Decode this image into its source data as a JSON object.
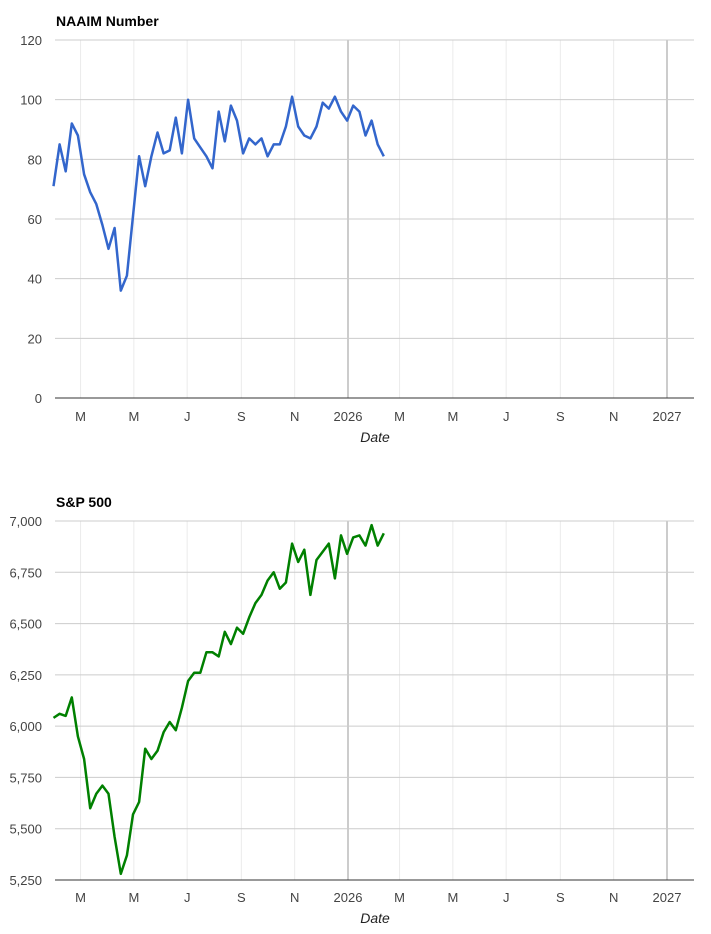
{
  "chart_data": [
    {
      "type": "line",
      "title": "NAAIM Number",
      "xlabel": "Date",
      "ylabel": "",
      "ylim": [
        0,
        120
      ],
      "yticks": [
        0,
        20,
        40,
        60,
        80,
        100,
        120
      ],
      "ytick_labels": [
        "0",
        "20",
        "40",
        "60",
        "80",
        "100",
        "120"
      ],
      "grid": true,
      "color": "#3366cc",
      "xticks": [
        {
          "label": "M",
          "date": "2025-03-01"
        },
        {
          "label": "M",
          "date": "2025-05-01"
        },
        {
          "label": "J",
          "date": "2025-07-01"
        },
        {
          "label": "S",
          "date": "2025-09-01"
        },
        {
          "label": "N",
          "date": "2025-11-01"
        },
        {
          "label": "2026",
          "date": "2026-01-01",
          "major": true
        },
        {
          "label": "M",
          "date": "2026-03-01"
        },
        {
          "label": "M",
          "date": "2026-05-01"
        },
        {
          "label": "J",
          "date": "2026-07-01"
        },
        {
          "label": "S",
          "date": "2026-09-01"
        },
        {
          "label": "N",
          "date": "2026-11-01"
        },
        {
          "label": "2027",
          "date": "2027-01-01",
          "major": true
        }
      ],
      "series": [
        {
          "x": [
            "2025-01-29",
            "2025-02-05",
            "2025-02-12",
            "2025-02-19",
            "2025-02-26",
            "2025-03-05",
            "2025-03-12",
            "2025-03-19",
            "2025-03-26",
            "2025-04-02",
            "2025-04-09",
            "2025-04-16",
            "2025-04-23",
            "2025-04-30",
            "2025-05-07",
            "2025-05-14",
            "2025-05-21",
            "2025-05-28",
            "2025-06-04",
            "2025-06-11",
            "2025-06-18",
            "2025-06-25",
            "2025-07-02",
            "2025-07-09",
            "2025-07-16",
            "2025-07-23",
            "2025-07-30",
            "2025-08-06",
            "2025-08-13",
            "2025-08-20",
            "2025-08-27",
            "2025-09-03",
            "2025-09-10",
            "2025-09-17",
            "2025-09-24",
            "2025-10-01",
            "2025-10-08",
            "2025-10-15",
            "2025-10-22",
            "2025-10-29",
            "2025-11-05",
            "2025-11-12",
            "2025-11-19",
            "2025-11-26",
            "2025-12-03",
            "2025-12-10",
            "2025-12-17",
            "2025-12-24",
            "2025-12-31",
            "2026-01-07",
            "2026-01-14",
            "2026-01-21",
            "2026-01-28",
            "2026-02-04",
            "2026-02-11"
          ],
          "values": [
            71,
            85,
            76,
            92,
            88,
            75,
            69,
            65,
            58,
            50,
            57,
            36,
            41,
            61,
            81,
            71,
            81,
            89,
            82,
            83,
            94,
            82,
            100,
            87,
            84,
            81,
            77,
            96,
            86,
            98,
            93,
            82,
            87,
            85,
            87,
            81,
            85,
            85,
            91,
            101,
            91,
            88,
            87,
            91,
            99,
            97,
            101,
            96,
            93,
            98,
            96,
            88,
            93,
            85,
            81
          ]
        }
      ]
    },
    {
      "type": "line",
      "title": "S&P 500",
      "xlabel": "Date",
      "ylabel": "",
      "ylim": [
        5250,
        7000
      ],
      "yticks": [
        5250,
        5500,
        5750,
        6000,
        6250,
        6500,
        6750,
        7000
      ],
      "ytick_labels": [
        "5,250",
        "5,500",
        "5,750",
        "6,000",
        "6,250",
        "6,500",
        "6,750",
        "7,000"
      ],
      "grid": true,
      "color": "#008000",
      "xticks": [
        {
          "label": "M",
          "date": "2025-03-01"
        },
        {
          "label": "M",
          "date": "2025-05-01"
        },
        {
          "label": "J",
          "date": "2025-07-01"
        },
        {
          "label": "S",
          "date": "2025-09-01"
        },
        {
          "label": "N",
          "date": "2025-11-01"
        },
        {
          "label": "2026",
          "date": "2026-01-01",
          "major": true
        },
        {
          "label": "M",
          "date": "2026-03-01"
        },
        {
          "label": "M",
          "date": "2026-05-01"
        },
        {
          "label": "J",
          "date": "2026-07-01"
        },
        {
          "label": "S",
          "date": "2026-09-01"
        },
        {
          "label": "N",
          "date": "2026-11-01"
        },
        {
          "label": "2027",
          "date": "2027-01-01",
          "major": true
        }
      ],
      "series": [
        {
          "x": [
            "2025-01-29",
            "2025-02-05",
            "2025-02-12",
            "2025-02-19",
            "2025-02-26",
            "2025-03-05",
            "2025-03-12",
            "2025-03-19",
            "2025-03-26",
            "2025-04-02",
            "2025-04-09",
            "2025-04-16",
            "2025-04-23",
            "2025-04-30",
            "2025-05-07",
            "2025-05-14",
            "2025-05-21",
            "2025-05-28",
            "2025-06-04",
            "2025-06-11",
            "2025-06-18",
            "2025-06-25",
            "2025-07-02",
            "2025-07-09",
            "2025-07-16",
            "2025-07-23",
            "2025-07-30",
            "2025-08-06",
            "2025-08-13",
            "2025-08-20",
            "2025-08-27",
            "2025-09-03",
            "2025-09-10",
            "2025-09-17",
            "2025-09-24",
            "2025-10-01",
            "2025-10-08",
            "2025-10-15",
            "2025-10-22",
            "2025-10-29",
            "2025-11-05",
            "2025-11-12",
            "2025-11-19",
            "2025-11-26",
            "2025-12-03",
            "2025-12-10",
            "2025-12-17",
            "2025-12-24",
            "2025-12-31",
            "2026-01-07",
            "2026-01-14",
            "2026-01-21",
            "2026-01-28",
            "2026-02-04",
            "2026-02-11"
          ],
          "values": [
            6040,
            6060,
            6050,
            6140,
            5950,
            5840,
            5600,
            5670,
            5710,
            5670,
            5460,
            5280,
            5370,
            5570,
            5630,
            5890,
            5840,
            5880,
            5970,
            6020,
            5980,
            6090,
            6220,
            6260,
            6260,
            6360,
            6360,
            6340,
            6460,
            6400,
            6480,
            6450,
            6530,
            6600,
            6640,
            6710,
            6750,
            6670,
            6700,
            6890,
            6800,
            6860,
            6640,
            6810,
            6850,
            6890,
            6720,
            6930,
            6840,
            6920,
            6930,
            6880,
            6980,
            6880,
            6940
          ]
        }
      ]
    }
  ]
}
